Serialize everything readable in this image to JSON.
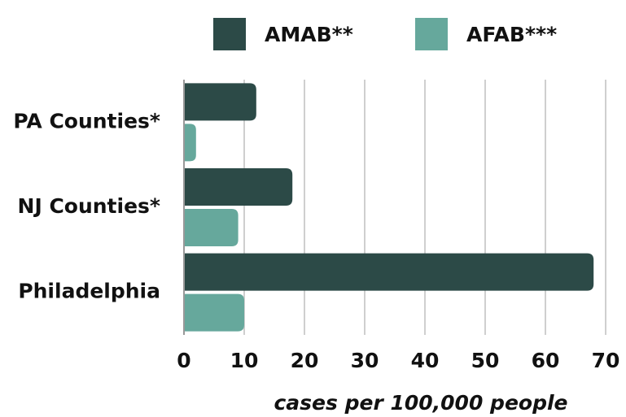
{
  "chart_data": {
    "type": "bar",
    "orientation": "horizontal",
    "categories": [
      "PA Counties*",
      "NJ Counties*",
      "Philadelphia"
    ],
    "series": [
      {
        "name": "AMAB**",
        "color": "#2c4a47",
        "values": [
          12,
          18,
          68
        ]
      },
      {
        "name": "AFAB***",
        "color": "#66a89c",
        "values": [
          2,
          9,
          10
        ]
      }
    ],
    "x_label": "cases per 100,000 people",
    "xlim": [
      0,
      70
    ],
    "xticks": [
      0,
      10,
      20,
      30,
      40,
      50,
      60,
      70
    ],
    "grid": true,
    "legend": "top"
  }
}
